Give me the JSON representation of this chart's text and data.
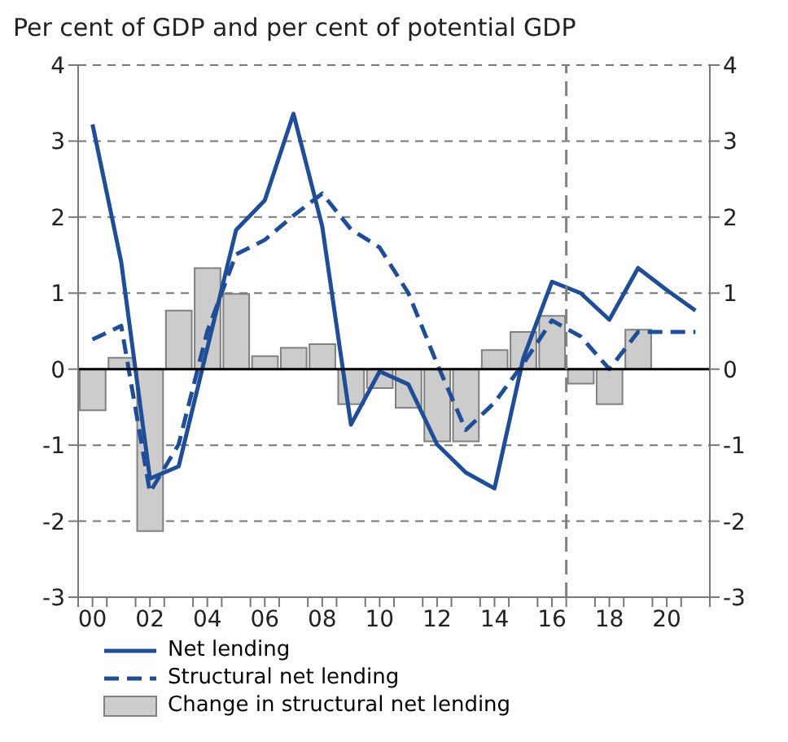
{
  "chart_data": {
    "type": "line",
    "title": "Per cent of GDP and per cent of potential GDP",
    "x": [
      2000,
      2001,
      2002,
      2003,
      2004,
      2005,
      2006,
      2007,
      2008,
      2009,
      2010,
      2011,
      2012,
      2013,
      2014,
      2015,
      2016,
      2017,
      2018,
      2019,
      2020,
      2021
    ],
    "xlim": [
      1999.5,
      2021.5
    ],
    "xticks": [
      {
        "value": 1999.5,
        "label": null
      },
      {
        "value": 2000,
        "label": "00"
      },
      {
        "value": 2000.5,
        "label": null
      },
      {
        "value": 2001.5,
        "label": null
      },
      {
        "value": 2002,
        "label": "02"
      },
      {
        "value": 2002.5,
        "label": null
      },
      {
        "value": 2003.5,
        "label": null
      },
      {
        "value": 2004,
        "label": "04"
      },
      {
        "value": 2004.5,
        "label": null
      },
      {
        "value": 2005.5,
        "label": null
      },
      {
        "value": 2006,
        "label": "06"
      },
      {
        "value": 2006.5,
        "label": null
      },
      {
        "value": 2007.5,
        "label": null
      },
      {
        "value": 2008,
        "label": "08"
      },
      {
        "value": 2008.5,
        "label": null
      },
      {
        "value": 2009.5,
        "label": null
      },
      {
        "value": 2010,
        "label": "10"
      },
      {
        "value": 2010.5,
        "label": null
      },
      {
        "value": 2011.5,
        "label": null
      },
      {
        "value": 2012,
        "label": "12"
      },
      {
        "value": 2012.5,
        "label": null
      },
      {
        "value": 2013.5,
        "label": null
      },
      {
        "value": 2014,
        "label": "14"
      },
      {
        "value": 2014.5,
        "label": null
      },
      {
        "value": 2015.5,
        "label": null
      },
      {
        "value": 2016,
        "label": "16"
      },
      {
        "value": 2016.5,
        "label": null
      },
      {
        "value": 2017.5,
        "label": null
      },
      {
        "value": 2018,
        "label": "18"
      },
      {
        "value": 2018.5,
        "label": null
      },
      {
        "value": 2019.5,
        "label": null
      },
      {
        "value": 2020,
        "label": "20"
      },
      {
        "value": 2020.5,
        "label": null
      },
      {
        "value": 2021.5,
        "label": null
      }
    ],
    "ylim": [
      -3,
      4
    ],
    "yticks": [
      -3,
      -2,
      -1,
      0,
      1,
      2,
      3,
      4
    ],
    "y2lim": [
      -3,
      4
    ],
    "y2ticks": [
      -3,
      -2,
      -1,
      0,
      1,
      2,
      3,
      4
    ],
    "series": [
      {
        "name": "Change in structural net lending",
        "type": "bar",
        "color": "#cccccc",
        "values": [
          -0.54,
          0.15,
          -2.13,
          0.77,
          1.33,
          0.99,
          0.17,
          0.28,
          0.33,
          -0.46,
          -0.25,
          -0.51,
          -0.95,
          -0.95,
          0.25,
          0.49,
          0.7,
          -0.19,
          -0.46,
          0.52,
          null,
          null
        ]
      },
      {
        "name": "Net lending",
        "line_style": "solid",
        "color": "#1f4e96",
        "values": [
          3.22,
          1.41,
          -1.44,
          -1.28,
          0.28,
          1.83,
          2.22,
          3.36,
          1.88,
          -0.73,
          -0.03,
          -0.2,
          -0.99,
          -1.36,
          -1.57,
          0.14,
          1.15,
          1.0,
          0.65,
          1.33,
          1.04,
          0.77
        ]
      },
      {
        "name": "Structural net lending",
        "line_style": "dashed",
        "color": "#1f4e96",
        "values": [
          0.39,
          0.57,
          -1.62,
          -0.99,
          0.5,
          1.51,
          1.7,
          2.02,
          2.31,
          1.84,
          1.6,
          1.0,
          0.07,
          -0.8,
          -0.44,
          0.07,
          0.64,
          0.43,
          0.0,
          0.49,
          0.49,
          0.49
        ]
      }
    ],
    "ref_lines": [
      {
        "axis": "y",
        "value": 0,
        "color": "#000000",
        "line_style": "solid"
      },
      {
        "axis": "x",
        "value": 2016.5,
        "color": "#808080",
        "line_style": "dashed"
      }
    ],
    "grid": "y",
    "legend": "bottom",
    "marker": "none"
  }
}
